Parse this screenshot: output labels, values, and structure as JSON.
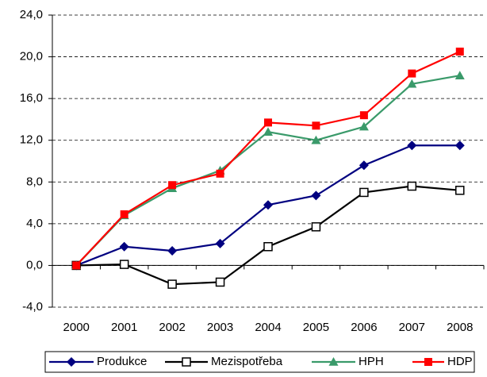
{
  "chart_data": {
    "type": "line",
    "categories": [
      "2000",
      "2001",
      "2002",
      "2003",
      "2004",
      "2005",
      "2006",
      "2007",
      "2008"
    ],
    "series": [
      {
        "name": "Produkce",
        "color": "#000080",
        "marker": "diamond",
        "values": [
          0,
          1.8,
          1.4,
          2.1,
          5.8,
          6.7,
          9.6,
          11.5,
          11.5
        ]
      },
      {
        "name": "Mezispotřeba",
        "color": "#000000",
        "marker": "open-square",
        "values": [
          0,
          0.1,
          -1.8,
          -1.6,
          1.8,
          3.7,
          7.0,
          7.6,
          7.2
        ]
      },
      {
        "name": "HPH",
        "color": "#3a9a6a",
        "marker": "triangle",
        "values": [
          0,
          4.8,
          7.4,
          9.1,
          12.8,
          12.0,
          13.3,
          17.4,
          18.2
        ]
      },
      {
        "name": "HDP",
        "color": "#ff0000",
        "marker": "square",
        "values": [
          0,
          4.9,
          7.7,
          8.8,
          13.7,
          13.4,
          14.4,
          18.4,
          20.5
        ]
      }
    ],
    "ylim": [
      -4,
      24
    ],
    "yticks": [
      {
        "value": -4,
        "label": "-4,0"
      },
      {
        "value": 0,
        "label": "0,0"
      },
      {
        "value": 4,
        "label": "4,0"
      },
      {
        "value": 8,
        "label": "8,0"
      },
      {
        "value": 12,
        "label": "12,0"
      },
      {
        "value": 16,
        "label": "16,0"
      },
      {
        "value": 20,
        "label": "20,0"
      },
      {
        "value": 24,
        "label": "24,0"
      }
    ],
    "grid": true,
    "legend": "bottom"
  }
}
